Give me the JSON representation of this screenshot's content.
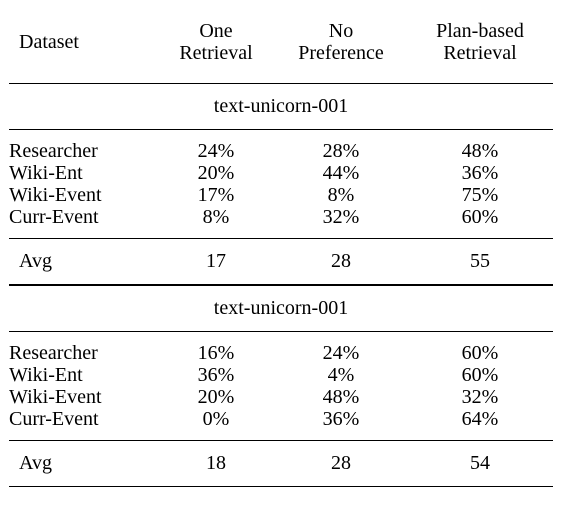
{
  "table": {
    "headers": [
      "Dataset",
      "One\nRetrieval",
      "No\nPreference",
      "Plan-based\nRetrieval"
    ],
    "header_lines": [
      [
        "Dataset"
      ],
      [
        "One",
        "Retrieval"
      ],
      [
        "No",
        "Preference"
      ],
      [
        "Plan-based",
        "Retrieval"
      ]
    ],
    "sections": [
      {
        "model": "text-unicorn-001",
        "rows": [
          [
            "Researcher",
            "24%",
            "28%",
            "48%"
          ],
          [
            "Wiki-Ent",
            "20%",
            "44%",
            "36%"
          ],
          [
            "Wiki-Event",
            "17%",
            "8%",
            "75%"
          ],
          [
            "Curr-Event",
            "8%",
            "32%",
            "60%"
          ]
        ],
        "avg": [
          "Avg",
          "17",
          "28",
          "55"
        ]
      },
      {
        "model": "text-unicorn-001",
        "rows": [
          [
            "Researcher",
            "16%",
            "24%",
            "60%"
          ],
          [
            "Wiki-Ent",
            "36%",
            "4%",
            "60%"
          ],
          [
            "Wiki-Event",
            "20%",
            "48%",
            "32%"
          ],
          [
            "Curr-Event",
            "0%",
            "36%",
            "64%"
          ]
        ],
        "avg": [
          "Avg",
          "18",
          "28",
          "54"
        ]
      }
    ]
  }
}
